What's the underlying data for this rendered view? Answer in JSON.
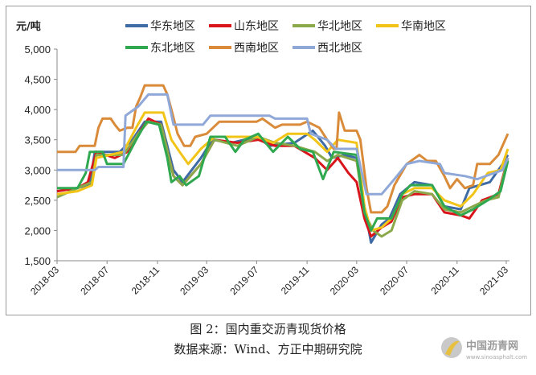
{
  "chart_data": {
    "type": "line",
    "ylabel": "元/吨",
    "ylim": [
      1500,
      5000
    ],
    "yticks": [
      "1,500",
      "2,000",
      "2,500",
      "3,000",
      "3,500",
      "4,000",
      "4,500",
      "5,000"
    ],
    "ytick_values": [
      1500,
      2000,
      2500,
      3000,
      3500,
      4000,
      4500,
      5000
    ],
    "xticks": [
      "2018-03",
      "2018-07",
      "2018-11",
      "2019-03",
      "2019-07",
      "2019-11",
      "2020-03",
      "2020-07",
      "2020-11",
      "2021-03"
    ],
    "xlim": [
      "2018-03-01",
      "2021-03-10"
    ],
    "grid": false,
    "legend_position": "top",
    "series": [
      {
        "name": "华东地区",
        "color": "#3E6BA5",
        "points": [
          [
            "2018-03-01",
            2650
          ],
          [
            "2018-04-15",
            2700
          ],
          [
            "2018-05-20",
            2750
          ],
          [
            "2018-06-01",
            3300
          ],
          [
            "2018-08-01",
            3300
          ],
          [
            "2018-09-01",
            3500
          ],
          [
            "2018-10-01",
            3800
          ],
          [
            "2018-11-10",
            3800
          ],
          [
            "2018-12-10",
            3000
          ],
          [
            "2019-01-01",
            2800
          ],
          [
            "2019-02-15",
            3200
          ],
          [
            "2019-03-15",
            3500
          ],
          [
            "2019-05-01",
            3450
          ],
          [
            "2019-07-01",
            3550
          ],
          [
            "2019-08-01",
            3400
          ],
          [
            "2019-10-01",
            3450
          ],
          [
            "2019-11-15",
            3650
          ],
          [
            "2019-12-15",
            3400
          ],
          [
            "2020-01-01",
            3200
          ],
          [
            "2020-02-01",
            3250
          ],
          [
            "2020-03-01",
            3200
          ],
          [
            "2020-03-20",
            2400
          ],
          [
            "2020-04-05",
            1800
          ],
          [
            "2020-05-01",
            2100
          ],
          [
            "2020-05-20",
            2200
          ],
          [
            "2020-06-15",
            2600
          ],
          [
            "2020-07-20",
            2800
          ],
          [
            "2020-09-01",
            2750
          ],
          [
            "2020-10-01",
            2400
          ],
          [
            "2020-11-10",
            2350
          ],
          [
            "2020-12-01",
            2700
          ],
          [
            "2021-01-20",
            2800
          ],
          [
            "2021-02-20",
            3100
          ],
          [
            "2021-03-05",
            3250
          ]
        ]
      },
      {
        "name": "山东地区",
        "color": "#D9151C",
        "points": [
          [
            "2018-03-01",
            2650
          ],
          [
            "2018-04-20",
            2700
          ],
          [
            "2018-05-15",
            2800
          ],
          [
            "2018-06-05",
            3300
          ],
          [
            "2018-07-20",
            3200
          ],
          [
            "2018-08-20",
            3300
          ],
          [
            "2018-09-15",
            3600
          ],
          [
            "2018-10-10",
            3850
          ],
          [
            "2018-11-10",
            3750
          ],
          [
            "2018-12-10",
            2900
          ],
          [
            "2019-01-01",
            2750
          ],
          [
            "2019-02-15",
            3100
          ],
          [
            "2019-03-20",
            3500
          ],
          [
            "2019-05-15",
            3450
          ],
          [
            "2019-07-05",
            3500
          ],
          [
            "2019-08-15",
            3400
          ],
          [
            "2019-10-01",
            3400
          ],
          [
            "2019-11-20",
            3200
          ],
          [
            "2019-12-20",
            3000
          ],
          [
            "2020-01-15",
            3200
          ],
          [
            "2020-02-10",
            2950
          ],
          [
            "2020-03-01",
            2800
          ],
          [
            "2020-03-20",
            2200
          ],
          [
            "2020-04-05",
            1900
          ],
          [
            "2020-05-01",
            2050
          ],
          [
            "2020-05-25",
            2150
          ],
          [
            "2020-06-20",
            2550
          ],
          [
            "2020-07-20",
            2600
          ],
          [
            "2020-09-01",
            2600
          ],
          [
            "2020-10-01",
            2300
          ],
          [
            "2020-11-10",
            2250
          ],
          [
            "2020-12-01",
            2200
          ],
          [
            "2021-01-01",
            2500
          ],
          [
            "2021-02-10",
            2600
          ],
          [
            "2021-03-05",
            3200
          ]
        ]
      },
      {
        "name": "华北地区",
        "color": "#8BA84A",
        "points": [
          [
            "2018-03-01",
            2550
          ],
          [
            "2018-04-20",
            2700
          ],
          [
            "2018-05-25",
            2800
          ],
          [
            "2018-06-05",
            3250
          ],
          [
            "2018-08-10",
            3250
          ],
          [
            "2018-09-15",
            3600
          ],
          [
            "2018-10-10",
            3800
          ],
          [
            "2018-11-10",
            3750
          ],
          [
            "2018-12-10",
            2900
          ],
          [
            "2019-01-01",
            2750
          ],
          [
            "2019-02-15",
            3100
          ],
          [
            "2019-03-20",
            3500
          ],
          [
            "2019-05-15",
            3400
          ],
          [
            "2019-07-05",
            3550
          ],
          [
            "2019-08-15",
            3450
          ],
          [
            "2019-10-01",
            3400
          ],
          [
            "2019-11-20",
            3300
          ],
          [
            "2019-12-20",
            3150
          ],
          [
            "2020-01-15",
            3250
          ],
          [
            "2020-03-01",
            3150
          ],
          [
            "2020-03-20",
            2300
          ],
          [
            "2020-04-10",
            2000
          ],
          [
            "2020-05-01",
            1900
          ],
          [
            "2020-05-25",
            2000
          ],
          [
            "2020-06-20",
            2500
          ],
          [
            "2020-07-20",
            2650
          ],
          [
            "2020-09-01",
            2600
          ],
          [
            "2020-10-01",
            2350
          ],
          [
            "2020-11-10",
            2300
          ],
          [
            "2020-12-10",
            2400
          ],
          [
            "2021-01-10",
            2500
          ],
          [
            "2021-02-10",
            2550
          ],
          [
            "2021-03-05",
            3200
          ]
        ]
      },
      {
        "name": "华南地区",
        "color": "#F2C417",
        "points": [
          [
            "2018-03-01",
            2600
          ],
          [
            "2018-04-20",
            2650
          ],
          [
            "2018-05-25",
            2750
          ],
          [
            "2018-06-05",
            3200
          ],
          [
            "2018-08-10",
            3300
          ],
          [
            "2018-09-10",
            3700
          ],
          [
            "2018-10-01",
            3950
          ],
          [
            "2018-11-15",
            3950
          ],
          [
            "2018-12-05",
            3500
          ],
          [
            "2018-12-25",
            3300
          ],
          [
            "2019-01-15",
            3100
          ],
          [
            "2019-02-15",
            3350
          ],
          [
            "2019-03-20",
            3550
          ],
          [
            "2019-07-01",
            3550
          ],
          [
            "2019-08-10",
            3450
          ],
          [
            "2019-09-15",
            3600
          ],
          [
            "2019-11-01",
            3600
          ],
          [
            "2019-11-20",
            3500
          ],
          [
            "2019-12-20",
            3300
          ],
          [
            "2020-01-15",
            3500
          ],
          [
            "2020-03-01",
            3450
          ],
          [
            "2020-03-20",
            2400
          ],
          [
            "2020-04-05",
            2000
          ],
          [
            "2020-05-01",
            2050
          ],
          [
            "2020-05-25",
            2200
          ],
          [
            "2020-06-20",
            2600
          ],
          [
            "2020-07-20",
            2700
          ],
          [
            "2020-09-01",
            2700
          ],
          [
            "2020-10-01",
            2500
          ],
          [
            "2020-11-10",
            2400
          ],
          [
            "2020-12-10",
            2600
          ],
          [
            "2021-01-15",
            2950
          ],
          [
            "2021-02-15",
            3000
          ],
          [
            "2021-03-05",
            3350
          ]
        ]
      },
      {
        "name": "东北地区",
        "color": "#2FA84F",
        "points": [
          [
            "2018-03-01",
            2700
          ],
          [
            "2018-04-20",
            2700
          ],
          [
            "2018-05-10",
            2950
          ],
          [
            "2018-05-20",
            3300
          ],
          [
            "2018-06-20",
            3300
          ],
          [
            "2018-07-01",
            3100
          ],
          [
            "2018-08-10",
            3100
          ],
          [
            "2018-09-10",
            3500
          ],
          [
            "2018-10-05",
            3800
          ],
          [
            "2018-11-05",
            3750
          ],
          [
            "2018-11-25",
            3200
          ],
          [
            "2018-12-05",
            2800
          ],
          [
            "2018-12-25",
            2900
          ],
          [
            "2019-01-10",
            2750
          ],
          [
            "2019-02-10",
            2900
          ],
          [
            "2019-03-10",
            3550
          ],
          [
            "2019-04-15",
            3550
          ],
          [
            "2019-05-10",
            3300
          ],
          [
            "2019-06-01",
            3500
          ],
          [
            "2019-07-05",
            3600
          ],
          [
            "2019-08-10",
            3300
          ],
          [
            "2019-09-15",
            3550
          ],
          [
            "2019-10-15",
            3350
          ],
          [
            "2019-11-15",
            3300
          ],
          [
            "2019-12-10",
            2850
          ],
          [
            "2020-01-05",
            3300
          ],
          [
            "2020-03-01",
            3250
          ],
          [
            "2020-03-20",
            2300
          ],
          [
            "2020-04-05",
            2000
          ],
          [
            "2020-04-20",
            2200
          ],
          [
            "2020-05-25",
            2200
          ],
          [
            "2020-06-20",
            2600
          ],
          [
            "2020-07-10",
            2750
          ],
          [
            "2020-09-01",
            2750
          ],
          [
            "2020-10-01",
            2400
          ],
          [
            "2020-11-10",
            2250
          ],
          [
            "2020-12-10",
            2350
          ],
          [
            "2021-01-15",
            2500
          ],
          [
            "2021-02-15",
            2650
          ],
          [
            "2021-03-05",
            3150
          ]
        ]
      },
      {
        "name": "西南地区",
        "color": "#D98B3A",
        "points": [
          [
            "2018-03-01",
            3300
          ],
          [
            "2018-04-15",
            3300
          ],
          [
            "2018-04-25",
            3400
          ],
          [
            "2018-06-01",
            3400
          ],
          [
            "2018-06-10",
            3700
          ],
          [
            "2018-06-20",
            3850
          ],
          [
            "2018-07-10",
            3850
          ],
          [
            "2018-07-20",
            3750
          ],
          [
            "2018-08-01",
            3650
          ],
          [
            "2018-08-20",
            3700
          ],
          [
            "2018-09-01",
            3700
          ],
          [
            "2018-09-10",
            4050
          ],
          [
            "2018-09-20",
            4200
          ],
          [
            "2018-10-01",
            4400
          ],
          [
            "2018-11-15",
            4400
          ],
          [
            "2018-11-25",
            4250
          ],
          [
            "2018-12-05",
            4000
          ],
          [
            "2018-12-20",
            3600
          ],
          [
            "2019-01-05",
            3400
          ],
          [
            "2019-01-20",
            3400
          ],
          [
            "2019-02-01",
            3550
          ],
          [
            "2019-03-01",
            3600
          ],
          [
            "2019-04-01",
            3800
          ],
          [
            "2019-07-01",
            3800
          ],
          [
            "2019-07-15",
            3850
          ],
          [
            "2019-08-15",
            3700
          ],
          [
            "2019-09-01",
            3750
          ],
          [
            "2019-10-15",
            3750
          ],
          [
            "2019-11-01",
            3800
          ],
          [
            "2019-12-01",
            3700
          ],
          [
            "2019-12-20",
            3500
          ],
          [
            "2020-01-05",
            3350
          ],
          [
            "2020-01-12",
            3350
          ],
          [
            "2020-01-18",
            3950
          ],
          [
            "2020-02-01",
            3650
          ],
          [
            "2020-03-01",
            3650
          ],
          [
            "2020-03-10",
            3500
          ],
          [
            "2020-03-25",
            2700
          ],
          [
            "2020-04-05",
            2300
          ],
          [
            "2020-05-01",
            2300
          ],
          [
            "2020-05-15",
            2400
          ],
          [
            "2020-06-01",
            2750
          ],
          [
            "2020-07-01",
            3100
          ],
          [
            "2020-08-01",
            3250
          ],
          [
            "2020-08-20",
            3150
          ],
          [
            "2020-09-10",
            3150
          ],
          [
            "2020-10-01",
            2900
          ],
          [
            "2020-10-15",
            2700
          ],
          [
            "2020-11-01",
            2850
          ],
          [
            "2020-11-20",
            2700
          ],
          [
            "2020-12-10",
            2750
          ],
          [
            "2020-12-20",
            3100
          ],
          [
            "2021-01-20",
            3100
          ],
          [
            "2021-02-10",
            3250
          ],
          [
            "2021-03-05",
            3600
          ]
        ]
      },
      {
        "name": "西北地区",
        "color": "#8FA8D8",
        "points": [
          [
            "2018-03-01",
            3000
          ],
          [
            "2018-06-01",
            3000
          ],
          [
            "2018-06-10",
            3050
          ],
          [
            "2018-08-10",
            3050
          ],
          [
            "2018-08-15",
            3900
          ],
          [
            "2018-09-15",
            4050
          ],
          [
            "2018-10-10",
            4250
          ],
          [
            "2018-11-25",
            4250
          ],
          [
            "2018-12-10",
            3750
          ],
          [
            "2019-02-20",
            3750
          ],
          [
            "2019-03-10",
            3900
          ],
          [
            "2019-08-01",
            3900
          ],
          [
            "2019-08-15",
            3850
          ],
          [
            "2019-11-01",
            3850
          ],
          [
            "2019-11-10",
            3600
          ],
          [
            "2019-12-20",
            3500
          ],
          [
            "2020-01-10",
            3350
          ],
          [
            "2020-03-01",
            3350
          ],
          [
            "2020-03-25",
            2600
          ],
          [
            "2020-05-01",
            2600
          ],
          [
            "2020-06-01",
            2850
          ],
          [
            "2020-07-01",
            3100
          ],
          [
            "2020-08-01",
            3150
          ],
          [
            "2020-09-20",
            3100
          ],
          [
            "2020-10-01",
            2950
          ],
          [
            "2020-11-20",
            2900
          ],
          [
            "2020-12-20",
            2850
          ],
          [
            "2021-02-20",
            3000
          ],
          [
            "2021-03-05",
            3200
          ]
        ]
      }
    ]
  },
  "caption": {
    "title": "图 2：国内重交沥青现货价格",
    "source": "数据来源：Wind、方正中期研究院"
  },
  "watermark": {
    "text": "中国沥青网",
    "url_text": "www.sinoasphalt.com"
  }
}
